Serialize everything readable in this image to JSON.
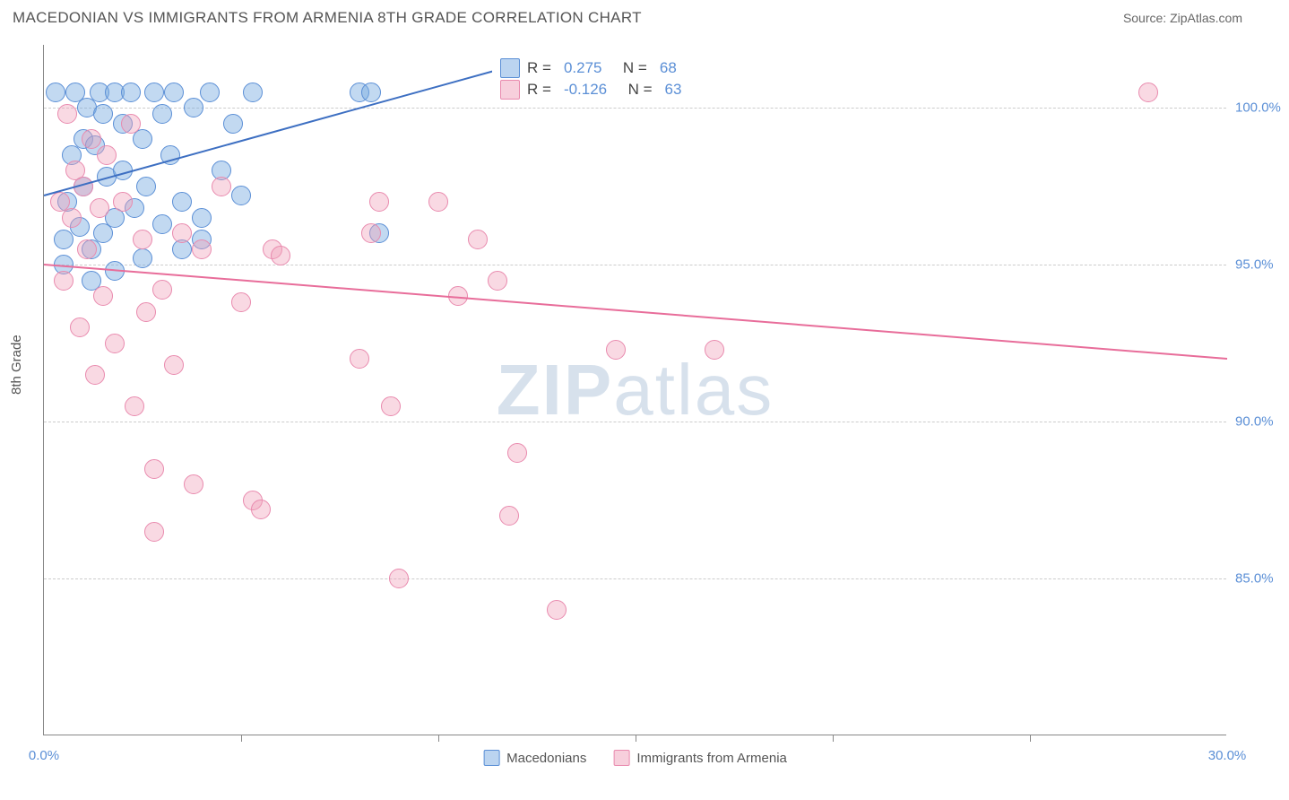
{
  "title": "MACEDONIAN VS IMMIGRANTS FROM ARMENIA 8TH GRADE CORRELATION CHART",
  "source": "Source: ZipAtlas.com",
  "y_axis_label": "8th Grade",
  "watermark": "ZIPatlas",
  "chart": {
    "type": "scatter",
    "xlim": [
      0,
      30
    ],
    "ylim": [
      80,
      102
    ],
    "y_ticks": [
      85.0,
      90.0,
      95.0,
      100.0
    ],
    "y_tick_labels": [
      "85.0%",
      "90.0%",
      "95.0%",
      "100.0%"
    ],
    "x_ticks": [
      0,
      30
    ],
    "x_tick_labels": [
      "0.0%",
      "30.0%"
    ],
    "x_minor_ticks": [
      5,
      10,
      15,
      20,
      25
    ],
    "background_color": "#ffffff",
    "grid_color": "#cccccc",
    "series": [
      {
        "name": "Macedonians",
        "color_fill": "rgba(120,170,225,0.45)",
        "color_stroke": "#5b8fd6",
        "R": "0.275",
        "N": "68",
        "trend": {
          "x1": 0,
          "y1": 97.2,
          "x2": 11.5,
          "y2": 101.2,
          "color": "#3d6fc2",
          "width": 2
        },
        "points": [
          [
            0.3,
            100.5
          ],
          [
            0.5,
            95.8
          ],
          [
            0.6,
            97.0
          ],
          [
            0.7,
            98.5
          ],
          [
            0.8,
            100.5
          ],
          [
            0.9,
            96.2
          ],
          [
            1.0,
            99.0
          ],
          [
            1.0,
            97.5
          ],
          [
            1.1,
            100.0
          ],
          [
            1.2,
            95.5
          ],
          [
            1.3,
            98.8
          ],
          [
            1.4,
            100.5
          ],
          [
            1.5,
            96.0
          ],
          [
            1.5,
            99.8
          ],
          [
            1.6,
            97.8
          ],
          [
            1.8,
            100.5
          ],
          [
            1.8,
            96.5
          ],
          [
            2.0,
            99.5
          ],
          [
            2.0,
            98.0
          ],
          [
            2.2,
            100.5
          ],
          [
            2.3,
            96.8
          ],
          [
            2.5,
            99.0
          ],
          [
            2.6,
            97.5
          ],
          [
            2.8,
            100.5
          ],
          [
            3.0,
            96.3
          ],
          [
            3.0,
            99.8
          ],
          [
            3.2,
            98.5
          ],
          [
            3.3,
            100.5
          ],
          [
            3.5,
            97.0
          ],
          [
            3.8,
            100.0
          ],
          [
            4.0,
            96.5
          ],
          [
            4.2,
            100.5
          ],
          [
            4.5,
            98.0
          ],
          [
            4.8,
            99.5
          ],
          [
            5.0,
            97.2
          ],
          [
            5.3,
            100.5
          ],
          [
            3.5,
            95.5
          ],
          [
            4.0,
            95.8
          ],
          [
            2.5,
            95.2
          ],
          [
            1.8,
            94.8
          ],
          [
            0.5,
            95.0
          ],
          [
            1.2,
            94.5
          ],
          [
            8.5,
            96.0
          ],
          [
            8.0,
            100.5
          ],
          [
            8.3,
            100.5
          ]
        ]
      },
      {
        "name": "Immigrants from Armenia",
        "color_fill": "rgba(240,160,185,0.40)",
        "color_stroke": "#e98aae",
        "R": "-0.126",
        "N": "63",
        "trend": {
          "x1": 0,
          "y1": 95.0,
          "x2": 30,
          "y2": 92.0,
          "color": "#e86d9a",
          "width": 2
        },
        "points": [
          [
            0.4,
            97.0
          ],
          [
            0.5,
            94.5
          ],
          [
            0.6,
            99.8
          ],
          [
            0.7,
            96.5
          ],
          [
            0.8,
            98.0
          ],
          [
            0.9,
            93.0
          ],
          [
            1.0,
            97.5
          ],
          [
            1.1,
            95.5
          ],
          [
            1.2,
            99.0
          ],
          [
            1.3,
            91.5
          ],
          [
            1.4,
            96.8
          ],
          [
            1.5,
            94.0
          ],
          [
            1.6,
            98.5
          ],
          [
            1.8,
            92.5
          ],
          [
            2.0,
            97.0
          ],
          [
            2.2,
            99.5
          ],
          [
            2.3,
            90.5
          ],
          [
            2.5,
            95.8
          ],
          [
            2.6,
            93.5
          ],
          [
            2.8,
            88.5
          ],
          [
            2.8,
            86.5
          ],
          [
            3.0,
            94.2
          ],
          [
            3.3,
            91.8
          ],
          [
            3.5,
            96.0
          ],
          [
            3.8,
            88.0
          ],
          [
            4.0,
            95.5
          ],
          [
            4.5,
            97.5
          ],
          [
            5.0,
            93.8
          ],
          [
            5.3,
            87.5
          ],
          [
            5.5,
            87.2
          ],
          [
            5.8,
            95.5
          ],
          [
            6.0,
            95.3
          ],
          [
            8.0,
            92.0
          ],
          [
            8.3,
            96.0
          ],
          [
            8.5,
            97.0
          ],
          [
            8.8,
            90.5
          ],
          [
            9.0,
            85.0
          ],
          [
            10.0,
            97.0
          ],
          [
            10.5,
            94.0
          ],
          [
            11.0,
            95.8
          ],
          [
            11.5,
            94.5
          ],
          [
            11.8,
            87.0
          ],
          [
            12.0,
            89.0
          ],
          [
            13.0,
            84.0
          ],
          [
            14.5,
            92.3
          ],
          [
            17.0,
            92.3
          ],
          [
            28.0,
            100.5
          ]
        ]
      }
    ]
  }
}
